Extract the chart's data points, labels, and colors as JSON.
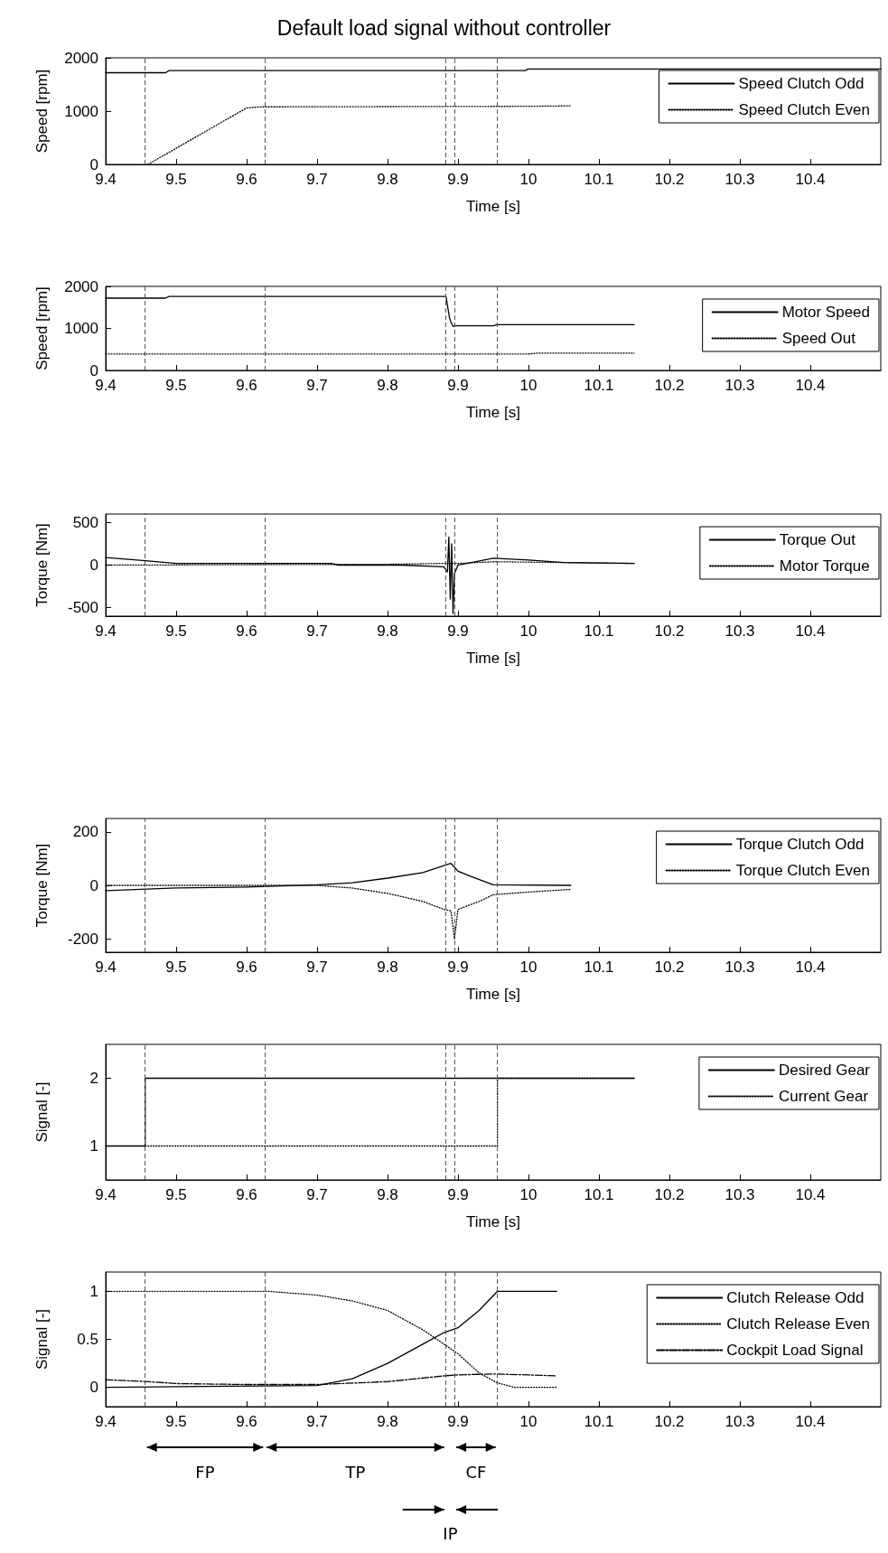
{
  "chart_data": [
    {
      "type": "line",
      "title": "Default load signal without controller",
      "xlabel": "Time [s]",
      "ylabel": "Speed [rpm]",
      "xlim": [
        9.4,
        10.5
      ],
      "xticks": [
        9.4,
        9.5,
        9.6,
        9.7,
        9.8,
        9.9,
        10,
        10.1,
        10.2,
        10.3,
        10.4
      ],
      "ylim": [
        0,
        2000
      ],
      "yticks": [
        0,
        1000,
        2000
      ],
      "grid": false,
      "legend": "top right",
      "series": [
        {
          "name": "Speed Clutch Odd",
          "color": "#000000",
          "line_style": "solid",
          "x": [
            9.4,
            9.485,
            9.49,
            9.995,
            10.0,
            10.5
          ],
          "values": [
            1720,
            1720,
            1760,
            1760,
            1790,
            1790
          ]
        },
        {
          "name": "Speed Clutch Even",
          "color": "#000000",
          "line_style": "dotted",
          "x": [
            9.46,
            9.6,
            9.62,
            10.0,
            10.06
          ],
          "values": [
            0,
            1060,
            1080,
            1090,
            1100
          ]
        }
      ],
      "ref_lines": [
        {
          "axis": "x",
          "value": 9.456,
          "color": "#555555",
          "line_style": "dashed"
        },
        {
          "axis": "x",
          "value": 9.626,
          "color": "#555555",
          "line_style": "dashed"
        },
        {
          "axis": "x",
          "value": 9.883,
          "color": "#555555",
          "line_style": "dashed"
        },
        {
          "axis": "x",
          "value": 9.895,
          "color": "#555555",
          "line_style": "dashed"
        },
        {
          "axis": "x",
          "value": 9.956,
          "color": "#555555",
          "line_style": "dashed"
        }
      ]
    },
    {
      "type": "line",
      "xlabel": "Time [s]",
      "ylabel": "Speed [rpm]",
      "xlim": [
        9.4,
        10.5
      ],
      "xticks": [
        9.4,
        9.5,
        9.6,
        9.7,
        9.8,
        9.9,
        10,
        10.1,
        10.2,
        10.3,
        10.4
      ],
      "ylim": [
        0,
        2000
      ],
      "yticks": [
        0,
        1000,
        2000
      ],
      "grid": false,
      "legend": "top right",
      "series": [
        {
          "name": "Motor Speed",
          "color": "#000000",
          "line_style": "solid",
          "x": [
            9.4,
            9.485,
            9.49,
            9.883,
            9.886,
            9.888,
            9.89,
            9.893,
            9.895,
            9.95,
            9.955,
            10.15
          ],
          "values": [
            1720,
            1720,
            1760,
            1760,
            1450,
            1250,
            1150,
            1050,
            1060,
            1060,
            1090,
            1090
          ]
        },
        {
          "name": "Speed Out",
          "color": "#000000",
          "line_style": "dotted",
          "x": [
            9.4,
            10.0,
            10.01,
            10.15
          ],
          "values": [
            390,
            390,
            410,
            410
          ]
        }
      ],
      "ref_lines": [
        {
          "axis": "x",
          "value": 9.456,
          "color": "#555555",
          "line_style": "dashed"
        },
        {
          "axis": "x",
          "value": 9.626,
          "color": "#555555",
          "line_style": "dashed"
        },
        {
          "axis": "x",
          "value": 9.883,
          "color": "#555555",
          "line_style": "dashed"
        },
        {
          "axis": "x",
          "value": 9.895,
          "color": "#555555",
          "line_style": "dashed"
        },
        {
          "axis": "x",
          "value": 9.956,
          "color": "#555555",
          "line_style": "dashed"
        }
      ]
    },
    {
      "type": "line",
      "xlabel": "Time [s]",
      "ylabel": "Torque [Nm]",
      "xlim": [
        9.4,
        10.5
      ],
      "xticks": [
        9.4,
        9.5,
        9.6,
        9.7,
        9.8,
        9.9,
        10,
        10.1,
        10.2,
        10.3,
        10.4
      ],
      "ylim": [
        -600,
        600
      ],
      "yticks": [
        -500,
        0,
        500
      ],
      "grid": false,
      "legend": "top right",
      "series": [
        {
          "name": "Torque Out",
          "color": "#000000",
          "line_style": "solid",
          "x": [
            9.4,
            9.46,
            9.5,
            9.72,
            9.73,
            9.82,
            9.88,
            9.885,
            9.887,
            9.889,
            9.891,
            9.893,
            9.895,
            9.9,
            9.95,
            10.0,
            10.05,
            10.15
          ],
          "values": [
            90,
            50,
            20,
            20,
            0,
            0,
            -20,
            -80,
            330,
            -400,
            250,
            -570,
            -100,
            0,
            80,
            60,
            30,
            20
          ]
        },
        {
          "name": "Motor Torque",
          "color": "#000000",
          "line_style": "dotted",
          "x": [
            9.4,
            9.8,
            9.88,
            9.9,
            9.95,
            10.05,
            10.15
          ],
          "values": [
            0,
            10,
            20,
            20,
            40,
            30,
            20
          ]
        }
      ],
      "ref_lines": [
        {
          "axis": "x",
          "value": 9.456,
          "color": "#555555",
          "line_style": "dashed"
        },
        {
          "axis": "x",
          "value": 9.626,
          "color": "#555555",
          "line_style": "dashed"
        },
        {
          "axis": "x",
          "value": 9.883,
          "color": "#555555",
          "line_style": "dashed"
        },
        {
          "axis": "x",
          "value": 9.895,
          "color": "#555555",
          "line_style": "dashed"
        },
        {
          "axis": "x",
          "value": 9.956,
          "color": "#555555",
          "line_style": "dashed"
        }
      ]
    },
    {
      "type": "line",
      "xlabel": "Time [s]",
      "ylabel": "Torque [Nm]",
      "xlim": [
        9.4,
        10.5
      ],
      "xticks": [
        9.4,
        9.5,
        9.6,
        9.7,
        9.8,
        9.9,
        10,
        10.1,
        10.2,
        10.3,
        10.4
      ],
      "ylim": [
        -250,
        250
      ],
      "yticks": [
        -200,
        0,
        200
      ],
      "grid": false,
      "legend": "top right",
      "series": [
        {
          "name": "Torque Clutch Odd",
          "color": "#000000",
          "line_style": "solid",
          "x": [
            9.4,
            9.5,
            9.6,
            9.7,
            9.75,
            9.8,
            9.85,
            9.88,
            9.89,
            9.9,
            9.92,
            9.95,
            10.06
          ],
          "values": [
            -20,
            -10,
            -6,
            2,
            10,
            27,
            48,
            74,
            82,
            53,
            32,
            2,
            0
          ]
        },
        {
          "name": "Torque Clutch Even",
          "color": "#000000",
          "line_style": "dotted",
          "x": [
            9.4,
            9.7,
            9.75,
            9.8,
            9.85,
            9.88,
            9.89,
            9.895,
            9.9,
            9.93,
            9.95,
            10.0,
            10.06
          ],
          "values": [
            0,
            0,
            -10,
            -30,
            -60,
            -90,
            -95,
            -200,
            -90,
            -60,
            -35,
            -25,
            -15
          ]
        }
      ],
      "ref_lines": [
        {
          "axis": "x",
          "value": 9.456,
          "color": "#555555",
          "line_style": "dashed"
        },
        {
          "axis": "x",
          "value": 9.626,
          "color": "#555555",
          "line_style": "dashed"
        },
        {
          "axis": "x",
          "value": 9.883,
          "color": "#555555",
          "line_style": "dashed"
        },
        {
          "axis": "x",
          "value": 9.895,
          "color": "#555555",
          "line_style": "dashed"
        },
        {
          "axis": "x",
          "value": 9.956,
          "color": "#555555",
          "line_style": "dashed"
        }
      ]
    },
    {
      "type": "line",
      "xlabel": "Time [s]",
      "ylabel": "Signal [-]",
      "xlim": [
        9.4,
        10.5
      ],
      "xticks": [
        9.4,
        9.5,
        9.6,
        9.7,
        9.8,
        9.9,
        10,
        10.1,
        10.2,
        10.3,
        10.4
      ],
      "ylim": [
        0.5,
        2.5
      ],
      "yticks": [
        1,
        2
      ],
      "grid": false,
      "legend": "top right",
      "series": [
        {
          "name": "Desired Gear",
          "color": "#000000",
          "line_style": "solid",
          "x": [
            9.4,
            9.456,
            9.456,
            10.15
          ],
          "values": [
            1,
            1,
            2,
            2
          ]
        },
        {
          "name": "Current Gear",
          "color": "#000000",
          "line_style": "dotted",
          "x": [
            9.456,
            9.956,
            9.956,
            10.15
          ],
          "values": [
            1,
            1,
            2,
            2
          ]
        }
      ],
      "ref_lines": [
        {
          "axis": "x",
          "value": 9.456,
          "color": "#555555",
          "line_style": "dashed"
        },
        {
          "axis": "x",
          "value": 9.626,
          "color": "#555555",
          "line_style": "dashed"
        },
        {
          "axis": "x",
          "value": 9.883,
          "color": "#555555",
          "line_style": "dashed"
        },
        {
          "axis": "x",
          "value": 9.895,
          "color": "#555555",
          "line_style": "dashed"
        },
        {
          "axis": "x",
          "value": 9.956,
          "color": "#555555",
          "line_style": "dashed"
        }
      ]
    },
    {
      "type": "line",
      "ylabel": "Signal [-]",
      "xlim": [
        9.4,
        10.5
      ],
      "xticks": [
        9.4,
        9.5,
        9.6,
        9.7,
        9.8,
        9.9,
        10,
        10.1,
        10.2,
        10.3,
        10.4
      ],
      "ylim": [
        -0.2,
        1.2
      ],
      "yticks": [
        0,
        0.5,
        1
      ],
      "grid": false,
      "legend": "top right",
      "series": [
        {
          "name": "Clutch Release Odd",
          "color": "#000000",
          "line_style": "solid",
          "x": [
            9.4,
            9.7,
            9.75,
            9.8,
            9.85,
            9.88,
            9.9,
            9.93,
            9.956,
            10.04
          ],
          "values": [
            0,
            0.02,
            0.09,
            0.25,
            0.45,
            0.57,
            0.62,
            0.8,
            1,
            1
          ]
        },
        {
          "name": "Clutch Release Even",
          "color": "#000000",
          "line_style": "dotted",
          "x": [
            9.4,
            9.63,
            9.7,
            9.75,
            9.8,
            9.85,
            9.88,
            9.9,
            9.93,
            9.955,
            9.98,
            10.04
          ],
          "values": [
            1,
            1,
            0.96,
            0.9,
            0.8,
            0.6,
            0.45,
            0.35,
            0.15,
            0.05,
            0,
            0
          ]
        },
        {
          "name": "Cockpit Load Signal",
          "color": "#000000",
          "line_style": "dashdot",
          "x": [
            9.4,
            9.46,
            9.5,
            9.6,
            9.7,
            9.8,
            9.88,
            9.9,
            9.95,
            10.0,
            10.04
          ],
          "values": [
            0.08,
            0.06,
            0.04,
            0.03,
            0.03,
            0.06,
            0.12,
            0.13,
            0.14,
            0.13,
            0.12
          ]
        }
      ],
      "ref_lines": [
        {
          "axis": "x",
          "value": 9.456,
          "color": "#555555",
          "line_style": "dashed"
        },
        {
          "axis": "x",
          "value": 9.626,
          "color": "#555555",
          "line_style": "dashed"
        },
        {
          "axis": "x",
          "value": 9.883,
          "color": "#555555",
          "line_style": "dashed"
        },
        {
          "axis": "x",
          "value": 9.895,
          "color": "#555555",
          "line_style": "dashed"
        },
        {
          "axis": "x",
          "value": 9.956,
          "color": "#555555",
          "line_style": "dashed"
        }
      ],
      "annotations": [
        "FP",
        "TP",
        "IP",
        "CF"
      ]
    }
  ]
}
